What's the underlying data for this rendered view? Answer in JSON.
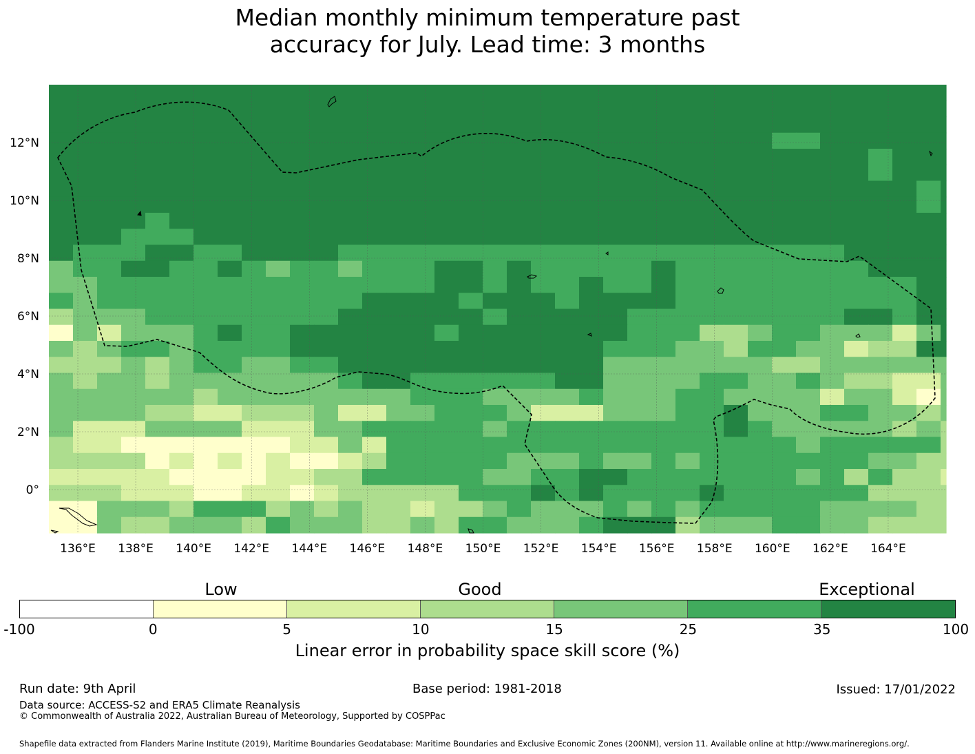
{
  "title_line1": "Median monthly minimum temperature past",
  "title_line2": "accuracy for July. Lead time: 3 months",
  "map": {
    "lon_labels": [
      "136°E",
      "138°E",
      "140°E",
      "142°E",
      "144°E",
      "146°E",
      "148°E",
      "150°E",
      "152°E",
      "154°E",
      "156°E",
      "158°E",
      "160°E",
      "162°E",
      "164°E"
    ],
    "lat_labels": [
      "12°N",
      "10°N",
      "8°N",
      "6°N",
      "4°N",
      "2°N",
      "0°"
    ],
    "lon_range": [
      135,
      166
    ],
    "lat_range": [
      -1.5,
      14
    ]
  },
  "colorbar": {
    "category_labels": [
      "Low",
      "Good",
      "Exceptional"
    ],
    "ticks": [
      "-100",
      "0",
      "5",
      "10",
      "15",
      "25",
      "35",
      "100"
    ],
    "colors": [
      "#ffffff",
      "#ffffcc",
      "#d9f0a3",
      "#addd8e",
      "#78c679",
      "#41ab5d",
      "#238443"
    ],
    "axis_label": "Linear error in probability space skill score (%)"
  },
  "footer": {
    "run_date": "Run date: 9th April",
    "base_period": "Base period: 1981-2018",
    "issued": "Issued: 17/01/2022",
    "data_source": "Data source: ACCESS-S2 and ERA5 Climate Reanalysis",
    "copyright": "© Commonwealth of Australia 2022, Australian Bureau of Meteorology, Supported by COSPPac",
    "shapefile": "Shapefile data extracted from Flanders Marine Institute (2019), Maritime Boundaries Geodatabase: Maritime Boundaries and Exclusive Economic Zones (200NM), version 11. Available online at http://www.marineregions.org/."
  }
}
